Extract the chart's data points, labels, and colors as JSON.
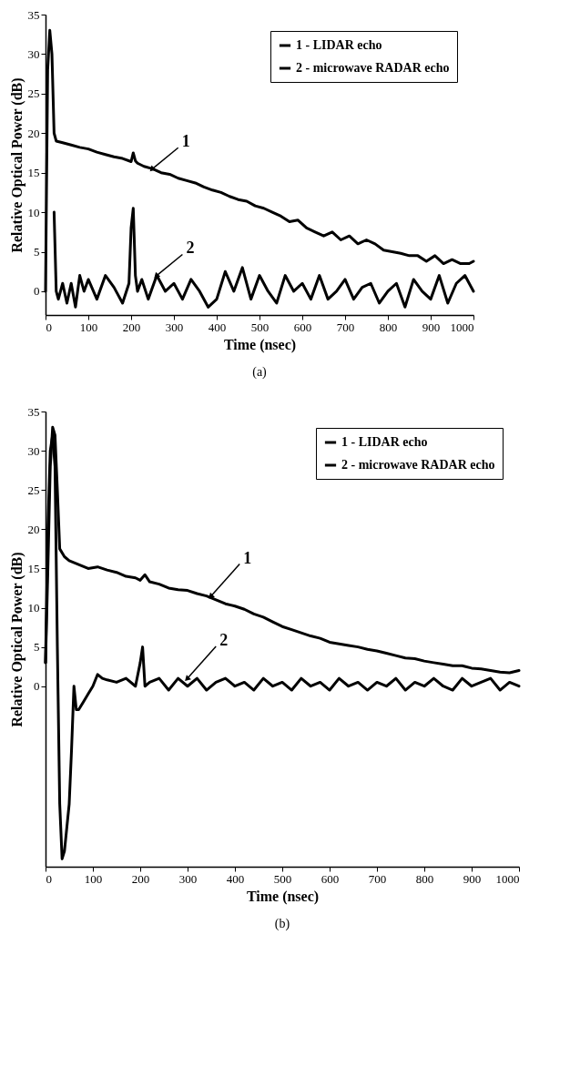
{
  "chart_data": [
    {
      "type": "line",
      "xlabel": "Time (nsec)",
      "ylabel": "Relative Optical Power (dB)",
      "xlim": [
        0,
        1000
      ],
      "xticks": [
        0,
        100,
        200,
        300,
        400,
        500,
        600,
        700,
        800,
        900,
        1000
      ],
      "ylim": [
        -3,
        35
      ],
      "yticks": [
        0,
        5,
        10,
        15,
        20,
        25,
        30,
        35
      ],
      "legend": "top right",
      "grid": false,
      "series": [
        {
          "name": "1 - LIDAR echo",
          "color": "#000000",
          "x": [
            0,
            5,
            10,
            15,
            20,
            25,
            40,
            60,
            80,
            100,
            120,
            140,
            160,
            180,
            200,
            205,
            210,
            215,
            230,
            250,
            270,
            290,
            310,
            330,
            350,
            370,
            390,
            410,
            430,
            450,
            470,
            490,
            510,
            530,
            550,
            570,
            590,
            610,
            630,
            650,
            670,
            690,
            710,
            730,
            750,
            770,
            790,
            810,
            830,
            850,
            870,
            890,
            910,
            930,
            950,
            970,
            990,
            1000
          ],
          "values": [
            0,
            28,
            33,
            30,
            20,
            19,
            18.8,
            18.5,
            18.2,
            18,
            17.6,
            17.3,
            17,
            16.8,
            16.4,
            17.5,
            16.5,
            16.2,
            15.8,
            15.5,
            15,
            14.8,
            14.3,
            14,
            13.7,
            13.2,
            12.8,
            12.5,
            12,
            11.6,
            11.4,
            10.8,
            10.5,
            10,
            9.5,
            8.8,
            9,
            8,
            7.5,
            7,
            7.5,
            6.5,
            7,
            6,
            6.5,
            6,
            5.2,
            5,
            4.8,
            4.5,
            4.5,
            3.8,
            4.5,
            3.5,
            4,
            3.5,
            3.5,
            3.8
          ]
        },
        {
          "name": "2 - microwave RADAR echo",
          "color": "#000000",
          "x": [
            20,
            25,
            30,
            40,
            50,
            60,
            70,
            80,
            90,
            100,
            120,
            140,
            160,
            180,
            195,
            200,
            205,
            210,
            215,
            225,
            240,
            260,
            280,
            300,
            320,
            340,
            360,
            380,
            400,
            420,
            440,
            460,
            480,
            500,
            520,
            540,
            560,
            580,
            600,
            620,
            640,
            660,
            680,
            700,
            720,
            740,
            760,
            780,
            800,
            820,
            840,
            860,
            880,
            900,
            920,
            940,
            960,
            980,
            1000
          ],
          "values": [
            10,
            0,
            -1,
            1,
            -1.5,
            1,
            -2,
            2,
            0,
            1.5,
            -1,
            2,
            0.5,
            -1.5,
            1,
            8,
            10.5,
            2,
            0,
            1.5,
            -1,
            2,
            0,
            1,
            -1,
            1.5,
            0,
            -2,
            -1,
            2.5,
            0,
            3,
            -1,
            2,
            0,
            -1.5,
            2,
            0,
            1,
            -1,
            2,
            -1,
            0,
            1.5,
            -1,
            0.5,
            1,
            -1.5,
            0,
            1,
            -2,
            1.5,
            0,
            -1,
            2,
            -1.5,
            1,
            2,
            0
          ]
        }
      ],
      "annotations": [
        {
          "text": "1",
          "x": 250,
          "y": 15.5
        },
        {
          "text": "2",
          "x": 260,
          "y": 2
        },
        "(a)"
      ]
    },
    {
      "type": "line",
      "xlabel": "Time (nsec)",
      "ylabel": "Relative Optical Power (dB)",
      "xlim": [
        0,
        1000
      ],
      "xticks": [
        0,
        100,
        200,
        300,
        400,
        500,
        600,
        700,
        800,
        900,
        1000
      ],
      "ylim": [
        -23,
        35
      ],
      "yticks": [
        0,
        5,
        10,
        15,
        20,
        25,
        30,
        35
      ],
      "legend": "top right",
      "grid": false,
      "series": [
        {
          "name": "1 - LIDAR echo",
          "color": "#000000",
          "x": [
            0,
            5,
            10,
            15,
            20,
            25,
            30,
            40,
            50,
            70,
            90,
            110,
            130,
            150,
            170,
            190,
            200,
            210,
            220,
            240,
            260,
            280,
            300,
            320,
            340,
            360,
            380,
            400,
            420,
            440,
            460,
            480,
            500,
            520,
            540,
            560,
            580,
            600,
            620,
            640,
            660,
            680,
            700,
            720,
            740,
            760,
            780,
            800,
            820,
            840,
            860,
            880,
            900,
            920,
            940,
            960,
            980,
            1000
          ],
          "values": [
            3,
            15,
            28,
            33,
            32,
            25,
            17.5,
            16.5,
            16,
            15.5,
            15,
            15.2,
            14.8,
            14.5,
            14,
            13.8,
            13.5,
            14.2,
            13.3,
            13,
            12.5,
            12.3,
            12.2,
            11.8,
            11.5,
            11,
            10.5,
            10.2,
            9.8,
            9.2,
            8.8,
            8.2,
            7.6,
            7.2,
            6.8,
            6.4,
            6.1,
            5.6,
            5.4,
            5.2,
            5,
            4.7,
            4.5,
            4.2,
            3.9,
            3.6,
            3.5,
            3.2,
            3,
            2.8,
            2.6,
            2.6,
            2.3,
            2.2,
            2,
            1.8,
            1.7,
            2
          ]
        },
        {
          "name": "2 - microwave RADAR echo",
          "color": "#000000",
          "x": [
            0,
            5,
            10,
            15,
            20,
            25,
            30,
            35,
            40,
            45,
            50,
            55,
            60,
            65,
            70,
            80,
            90,
            100,
            110,
            120,
            130,
            150,
            170,
            190,
            200,
            205,
            210,
            220,
            240,
            260,
            280,
            300,
            320,
            340,
            360,
            380,
            400,
            420,
            440,
            460,
            480,
            500,
            520,
            540,
            560,
            580,
            600,
            620,
            640,
            660,
            680,
            700,
            720,
            740,
            760,
            780,
            800,
            820,
            840,
            860,
            880,
            900,
            920,
            940,
            960,
            980,
            1000
          ],
          "values": [
            3,
            20,
            30,
            32,
            28,
            5,
            -15,
            -22,
            -21,
            -18,
            -15,
            -8,
            0,
            -3,
            -3,
            -2,
            -1,
            0,
            1.5,
            1,
            0.8,
            0.5,
            1,
            0,
            3,
            5,
            0,
            0.5,
            1,
            -0.5,
            1,
            0,
            1,
            -0.5,
            0.5,
            1,
            0,
            0.5,
            -0.5,
            1,
            0,
            0.5,
            -0.5,
            1,
            0,
            0.5,
            -0.5,
            1,
            0,
            0.5,
            -0.5,
            0.5,
            0,
            1,
            -0.5,
            0.5,
            0,
            1,
            0,
            -0.5,
            1,
            0,
            0.5,
            1,
            -0.5,
            0.5,
            0
          ]
        }
      ],
      "annotations": [
        {
          "text": "1",
          "x": 350,
          "y": 11.5
        },
        {
          "text": "2",
          "x": 300,
          "y": 1
        },
        "(b)"
      ]
    }
  ]
}
